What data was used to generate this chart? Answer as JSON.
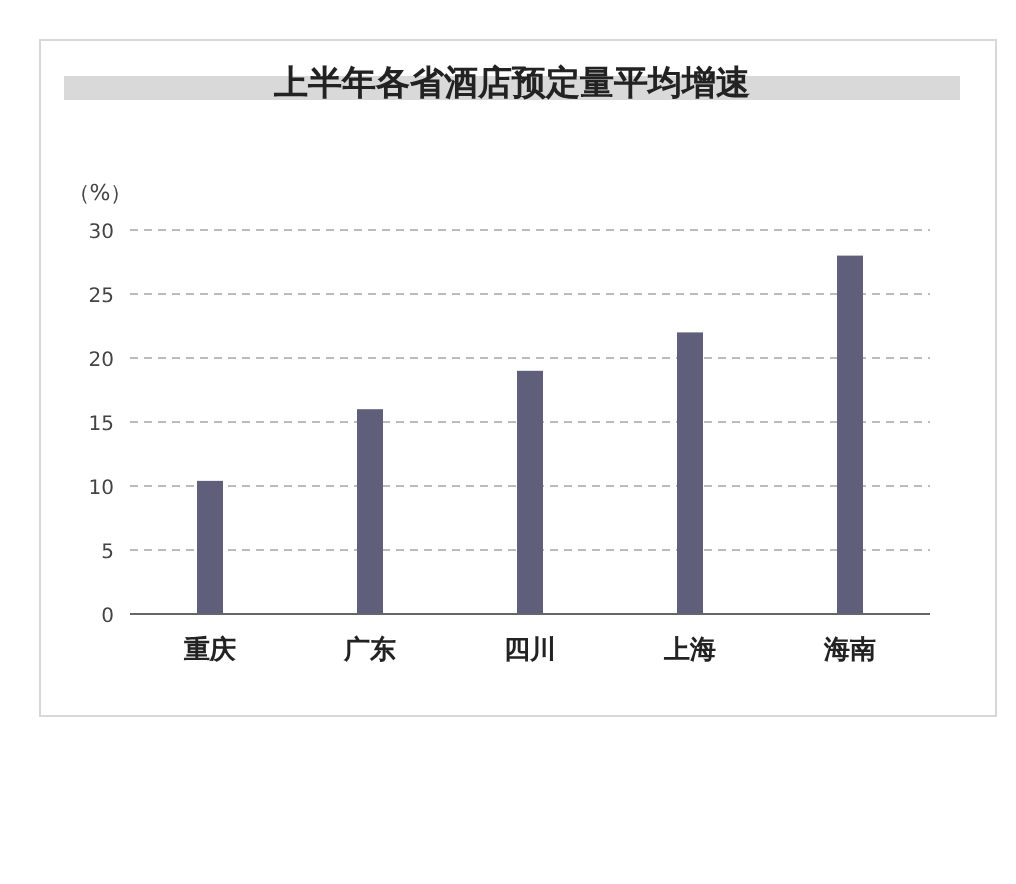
{
  "chart_data": {
    "type": "bar",
    "title": "上半年各省酒店预定量平均增速",
    "ylabel": "（%）",
    "categories": [
      "重庆",
      "广东",
      "四川",
      "上海",
      "海南"
    ],
    "values": [
      10.4,
      16,
      19,
      22,
      28
    ],
    "color": "#5f5f7b",
    "ylim": [
      0,
      30
    ],
    "yticks": [
      0,
      5,
      10,
      15,
      20,
      25,
      30
    ],
    "grid": "y"
  }
}
